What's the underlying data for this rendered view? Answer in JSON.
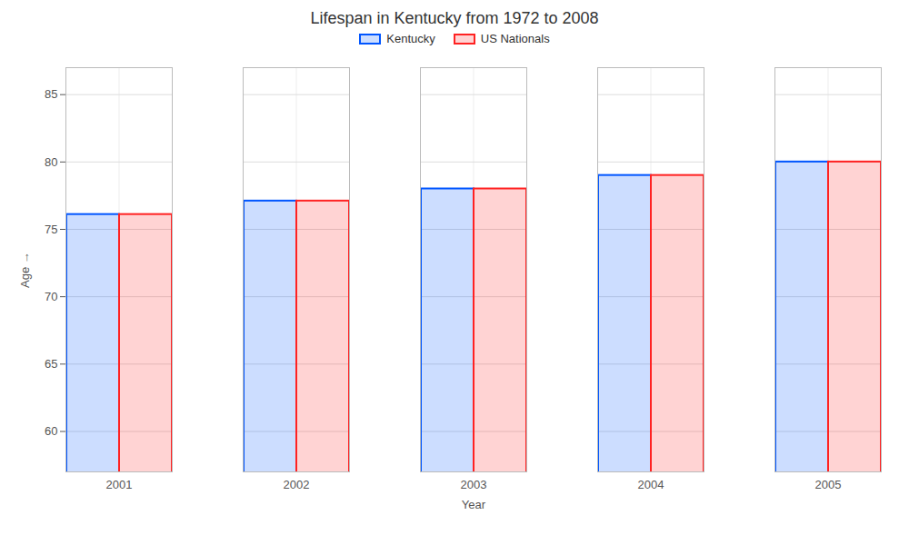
{
  "chart_data": {
    "type": "bar",
    "title": "Lifespan in Kentucky from 1972 to 2008",
    "xlabel": "Year",
    "ylabel": "Age",
    "categories": [
      "2001",
      "2002",
      "2003",
      "2004",
      "2005"
    ],
    "series": [
      {
        "name": "Kentucky",
        "color": "#0055FF",
        "values": [
          76.1,
          77.1,
          78.0,
          79.0,
          80.0
        ]
      },
      {
        "name": "US Nationals",
        "color": "#FF2222",
        "values": [
          76.1,
          77.1,
          78.0,
          79.0,
          80.0
        ]
      }
    ],
    "ylim": [
      57,
      87
    ],
    "yticks": [
      60,
      65,
      70,
      75,
      80,
      85
    ],
    "grid": true,
    "legend": "top"
  }
}
